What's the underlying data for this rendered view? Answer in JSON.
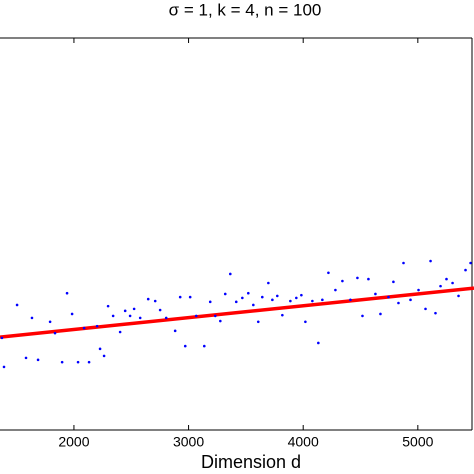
{
  "chart_data": {
    "type": "scatter",
    "title": "σ = 1, k = 4, n = 100",
    "x_label": "Dimension d",
    "xlim": [
      1355,
      5490
    ],
    "ylim": [
      0,
      10
    ],
    "xticks": [
      2000,
      3000,
      4000,
      5000
    ],
    "series": [
      {
        "color": "#0000ff",
        "x": [
          1372,
          1390,
          1504,
          1582,
          1634,
          1687,
          1792,
          1835,
          1897,
          1940,
          1984,
          2036,
          2089,
          2132,
          2202,
          2228,
          2263,
          2298,
          2342,
          2403,
          2447,
          2490,
          2525,
          2578,
          2648,
          2709,
          2752,
          2805,
          2883,
          2927,
          2971,
          3014,
          3067,
          3137,
          3189,
          3233,
          3277,
          3320,
          3364,
          3416,
          3469,
          3521,
          3565,
          3608,
          3643,
          3696,
          3731,
          3774,
          3818,
          3888,
          3940,
          3984,
          4019,
          4080,
          4132,
          4167,
          4220,
          4281,
          4342,
          4412,
          4473,
          4517,
          4569,
          4630,
          4674,
          4744,
          4787,
          4831,
          4875,
          4936,
          5006,
          5067,
          5111,
          5154,
          5198,
          5250,
          5303,
          5355,
          5416,
          5460
        ],
        "values": [
          2.35,
          1.61,
          3.19,
          1.84,
          2.86,
          1.79,
          2.76,
          2.47,
          1.73,
          3.49,
          2.96,
          1.73,
          2.6,
          1.73,
          2.65,
          2.07,
          1.89,
          3.16,
          2.91,
          2.5,
          3.04,
          2.91,
          3.09,
          2.86,
          3.34,
          3.29,
          3.06,
          2.86,
          2.53,
          3.39,
          2.14,
          3.39,
          2.91,
          2.14,
          3.27,
          2.91,
          2.78,
          3.47,
          3.98,
          3.27,
          3.37,
          3.49,
          3.19,
          2.76,
          3.39,
          3.75,
          3.32,
          3.42,
          2.93,
          3.29,
          3.37,
          3.44,
          2.76,
          3.29,
          2.22,
          3.32,
          4.01,
          3.57,
          3.8,
          3.32,
          3.88,
          2.91,
          3.85,
          3.47,
          2.96,
          3.39,
          3.78,
          3.24,
          4.26,
          3.32,
          3.57,
          3.09,
          4.31,
          2.98,
          3.67,
          3.85,
          3.75,
          3.42,
          4.08,
          4.26
        ]
      }
    ],
    "fit": {
      "color": "#ff0000",
      "x": [
        1355,
        5490
      ],
      "values": [
        2.37,
        3.62
      ]
    }
  }
}
